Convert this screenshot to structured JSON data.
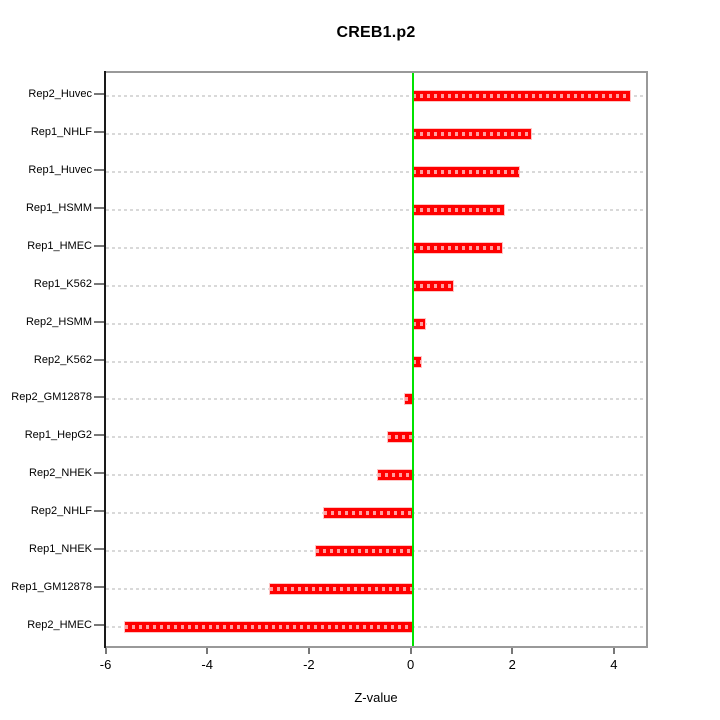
{
  "chart_data": {
    "type": "bar",
    "orientation": "horizontal",
    "title": "CREB1.p2",
    "xlabel": "Z-value",
    "categories": [
      "Rep2_Huvec",
      "Rep1_NHLF",
      "Rep1_Huvec",
      "Rep1_HSMM",
      "Rep1_HMEC",
      "Rep1_K562",
      "Rep2_HSMM",
      "Rep2_K562",
      "Rep2_GM12878",
      "Rep1_HepG2",
      "Rep2_NHEK",
      "Rep2_NHLF",
      "Rep1_NHEK",
      "Rep1_GM12878",
      "Rep2_HMEC"
    ],
    "values": [
      4.27,
      2.32,
      2.09,
      1.8,
      1.76,
      0.8,
      0.24,
      0.17,
      -0.15,
      -0.49,
      -0.68,
      -1.74,
      -1.89,
      -2.8,
      -5.65
    ],
    "categories_order": "top-to-bottom",
    "xlim": [
      -6.03,
      4.67
    ],
    "x_ticks": [
      -6,
      -4,
      -2,
      0,
      2,
      4
    ],
    "x_tick_labels": [
      "-6",
      "-4",
      "-2",
      "0",
      "2",
      "4"
    ],
    "grid": "horizontal dotted lines, one per category",
    "legend": "none",
    "colors": {
      "bar": "#ff0000",
      "bar_dash_overlay": "rgba(255,255,255,0.62)",
      "zero_line": "#00e300",
      "gridline": "#d9d9d9",
      "plot_border": "#999999",
      "y_axis_line": "#1a1a1a",
      "tick_marks": "#777777",
      "text": "#000000"
    }
  }
}
